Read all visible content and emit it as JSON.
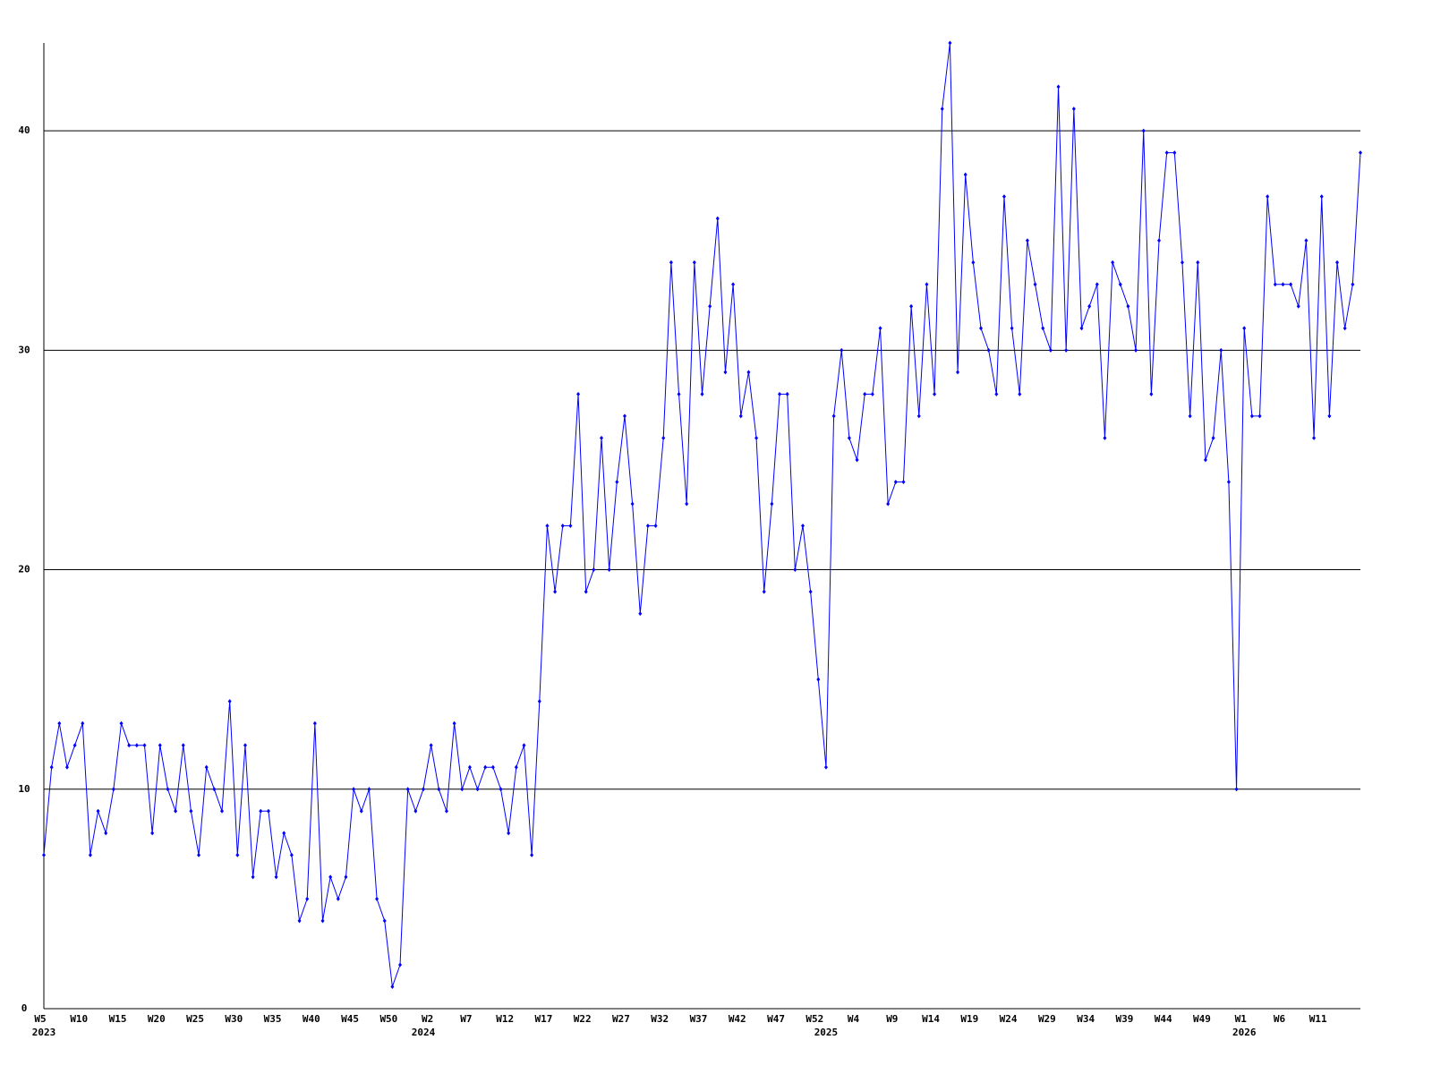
{
  "chart_data": {
    "type": "line",
    "categories": [
      "W5",
      null,
      null,
      null,
      null,
      "W10",
      null,
      null,
      null,
      null,
      "W15",
      null,
      null,
      null,
      null,
      "W20",
      null,
      null,
      null,
      null,
      "W25",
      null,
      null,
      null,
      null,
      "W30",
      null,
      null,
      null,
      null,
      "W35",
      null,
      null,
      null,
      null,
      "W40",
      null,
      null,
      null,
      null,
      "W45",
      null,
      null,
      null,
      null,
      "W50",
      null,
      null,
      null,
      null,
      "W2",
      null,
      null,
      null,
      null,
      "W7",
      null,
      null,
      null,
      null,
      "W12",
      null,
      null,
      null,
      null,
      "W17",
      null,
      null,
      null,
      null,
      "W22",
      null,
      null,
      null,
      null,
      "W27",
      null,
      null,
      null,
      null,
      "W32",
      null,
      null,
      null,
      null,
      "W37",
      null,
      null,
      null,
      null,
      "W42",
      null,
      null,
      null,
      null,
      "W47",
      null,
      null,
      null,
      null,
      "W52",
      null,
      null,
      null,
      null,
      "W4",
      null,
      null,
      null,
      null,
      "W9",
      null,
      null,
      null,
      null,
      "W14",
      null,
      null,
      null,
      null,
      "W19",
      null,
      null,
      null,
      null,
      "W24",
      null,
      null,
      null,
      null,
      "W29",
      null,
      null,
      null,
      null,
      "W34",
      null,
      null,
      null,
      null,
      "W39",
      null,
      null,
      null,
      null,
      "W44",
      null,
      null,
      null,
      null,
      "W49",
      null,
      null,
      null,
      null,
      "W1",
      null,
      null,
      null,
      null,
      "W6",
      null,
      null,
      null,
      null,
      "W11",
      null,
      null,
      null,
      null,
      null
    ],
    "category_years": [
      "2023",
      null,
      null,
      null,
      null,
      null,
      null,
      null,
      null,
      null,
      null,
      null,
      null,
      null,
      null,
      null,
      null,
      null,
      null,
      null,
      null,
      null,
      null,
      null,
      null,
      null,
      null,
      null,
      null,
      null,
      null,
      null,
      null,
      null,
      null,
      null,
      null,
      null,
      null,
      null,
      null,
      null,
      null,
      null,
      null,
      null,
      null,
      null,
      null,
      "2024",
      null,
      null,
      null,
      null,
      null,
      null,
      null,
      null,
      null,
      null,
      null,
      null,
      null,
      null,
      null,
      null,
      null,
      null,
      null,
      null,
      null,
      null,
      null,
      null,
      null,
      null,
      null,
      null,
      null,
      null,
      null,
      null,
      null,
      null,
      null,
      null,
      null,
      null,
      null,
      null,
      null,
      null,
      null,
      null,
      null,
      null,
      null,
      null,
      null,
      null,
      null,
      "2025",
      null,
      null,
      null,
      null,
      null,
      null,
      null,
      null,
      null,
      null,
      null,
      null,
      null,
      null,
      null,
      null,
      null,
      null,
      null,
      null,
      null,
      null,
      null,
      null,
      null,
      null,
      null,
      null,
      null,
      null,
      null,
      null,
      null,
      null,
      null,
      null,
      null,
      null,
      null,
      null,
      null,
      null,
      null,
      null,
      null,
      null,
      null,
      null,
      null,
      null,
      null,
      null,
      null,
      "2026",
      null,
      null,
      null,
      null,
      null,
      null,
      null,
      null,
      null,
      null,
      null,
      null,
      null,
      null,
      null
    ],
    "series": [
      {
        "color": "#0000ff",
        "values": [
          7,
          11,
          13,
          11,
          12,
          13,
          7,
          9,
          8,
          10,
          13,
          12,
          12,
          12,
          8,
          12,
          10,
          9,
          12,
          9,
          7,
          11,
          10,
          9,
          14,
          7,
          12,
          6,
          9,
          9,
          6,
          8,
          7,
          4,
          5,
          13,
          4,
          6,
          5,
          6,
          10,
          9,
          10,
          5,
          4,
          1,
          2,
          10,
          9,
          10,
          12,
          10,
          9,
          13,
          10,
          11,
          10,
          11,
          11,
          10,
          8,
          11,
          12,
          7,
          14,
          22,
          19,
          22,
          22,
          28,
          19,
          20,
          26,
          20,
          24,
          27,
          23,
          18,
          22,
          22,
          26,
          34,
          28,
          23,
          34,
          28,
          32,
          36,
          29,
          33,
          27,
          29,
          26,
          19,
          23,
          28,
          28,
          20,
          22,
          19,
          15,
          11,
          27,
          30,
          26,
          25,
          28,
          28,
          31,
          23,
          24,
          24,
          32,
          27,
          33,
          28,
          41,
          44,
          29,
          38,
          34,
          31,
          30,
          28,
          37,
          31,
          28,
          35,
          33,
          31,
          30,
          42,
          30,
          41,
          31,
          32,
          33,
          26,
          34,
          33,
          32,
          30,
          40,
          28,
          35,
          39,
          39,
          34,
          27,
          34,
          25,
          26,
          30,
          24,
          10,
          31,
          27,
          27,
          37,
          33,
          33,
          33,
          32,
          35,
          26,
          37,
          27,
          34,
          31,
          33,
          39
        ]
      }
    ],
    "ylim": [
      0,
      44
    ],
    "yticks": [
      0,
      10,
      20,
      30,
      40
    ],
    "grid": true
  }
}
